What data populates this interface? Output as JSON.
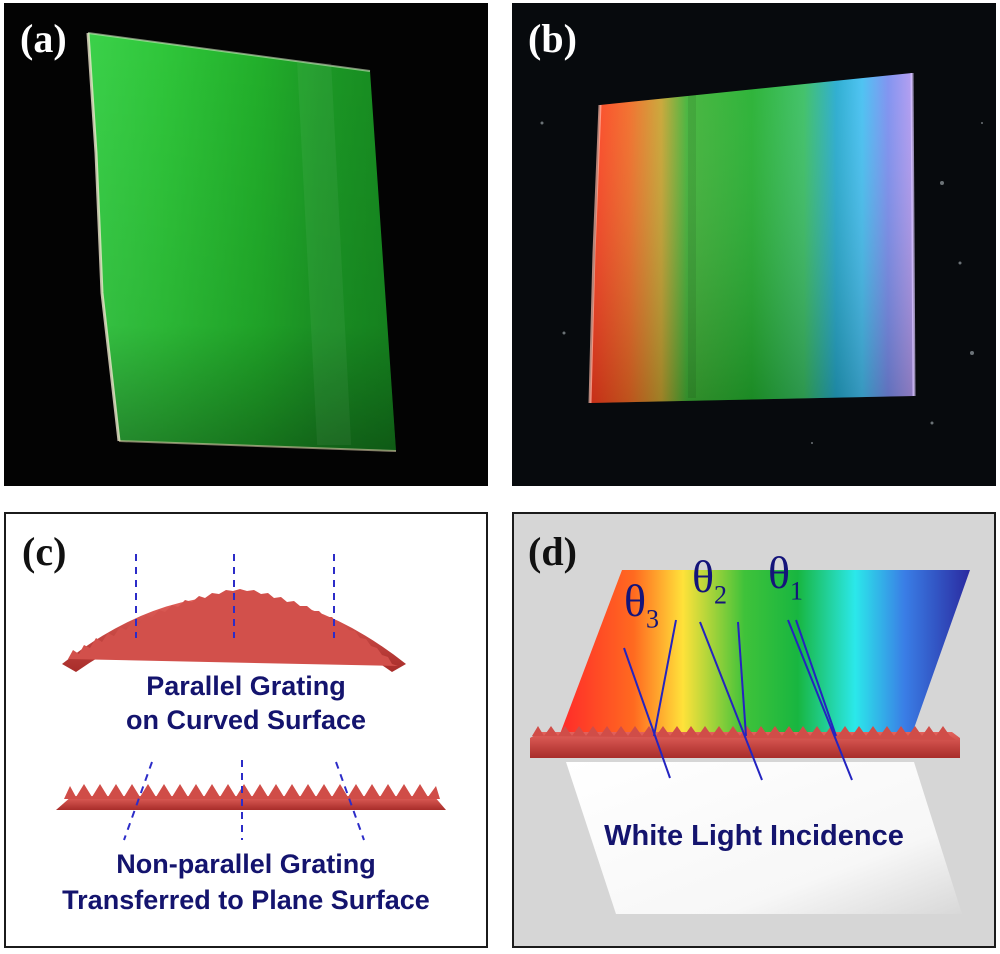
{
  "panels": {
    "a": {
      "label": "(a)"
    },
    "b": {
      "label": "(b)"
    },
    "c": {
      "label": "(c)",
      "caption_curved_line1": "Parallel Grating",
      "caption_curved_line2": "on Curved Surface",
      "caption_plane_line1": "Non-parallel Grating",
      "caption_plane_line2": "Transferred to Plane Surface"
    },
    "d": {
      "label": "(d)",
      "theta_symbol": "θ",
      "theta3_sub": "3",
      "theta2_sub": "2",
      "theta1_sub": "1",
      "incidence_caption": "White Light Incidence"
    }
  },
  "colors": {
    "grating": "#c8413e",
    "guide_lines": "#2c2cc8",
    "text_navy": "#14146e",
    "sample_green": "#1fb830"
  }
}
